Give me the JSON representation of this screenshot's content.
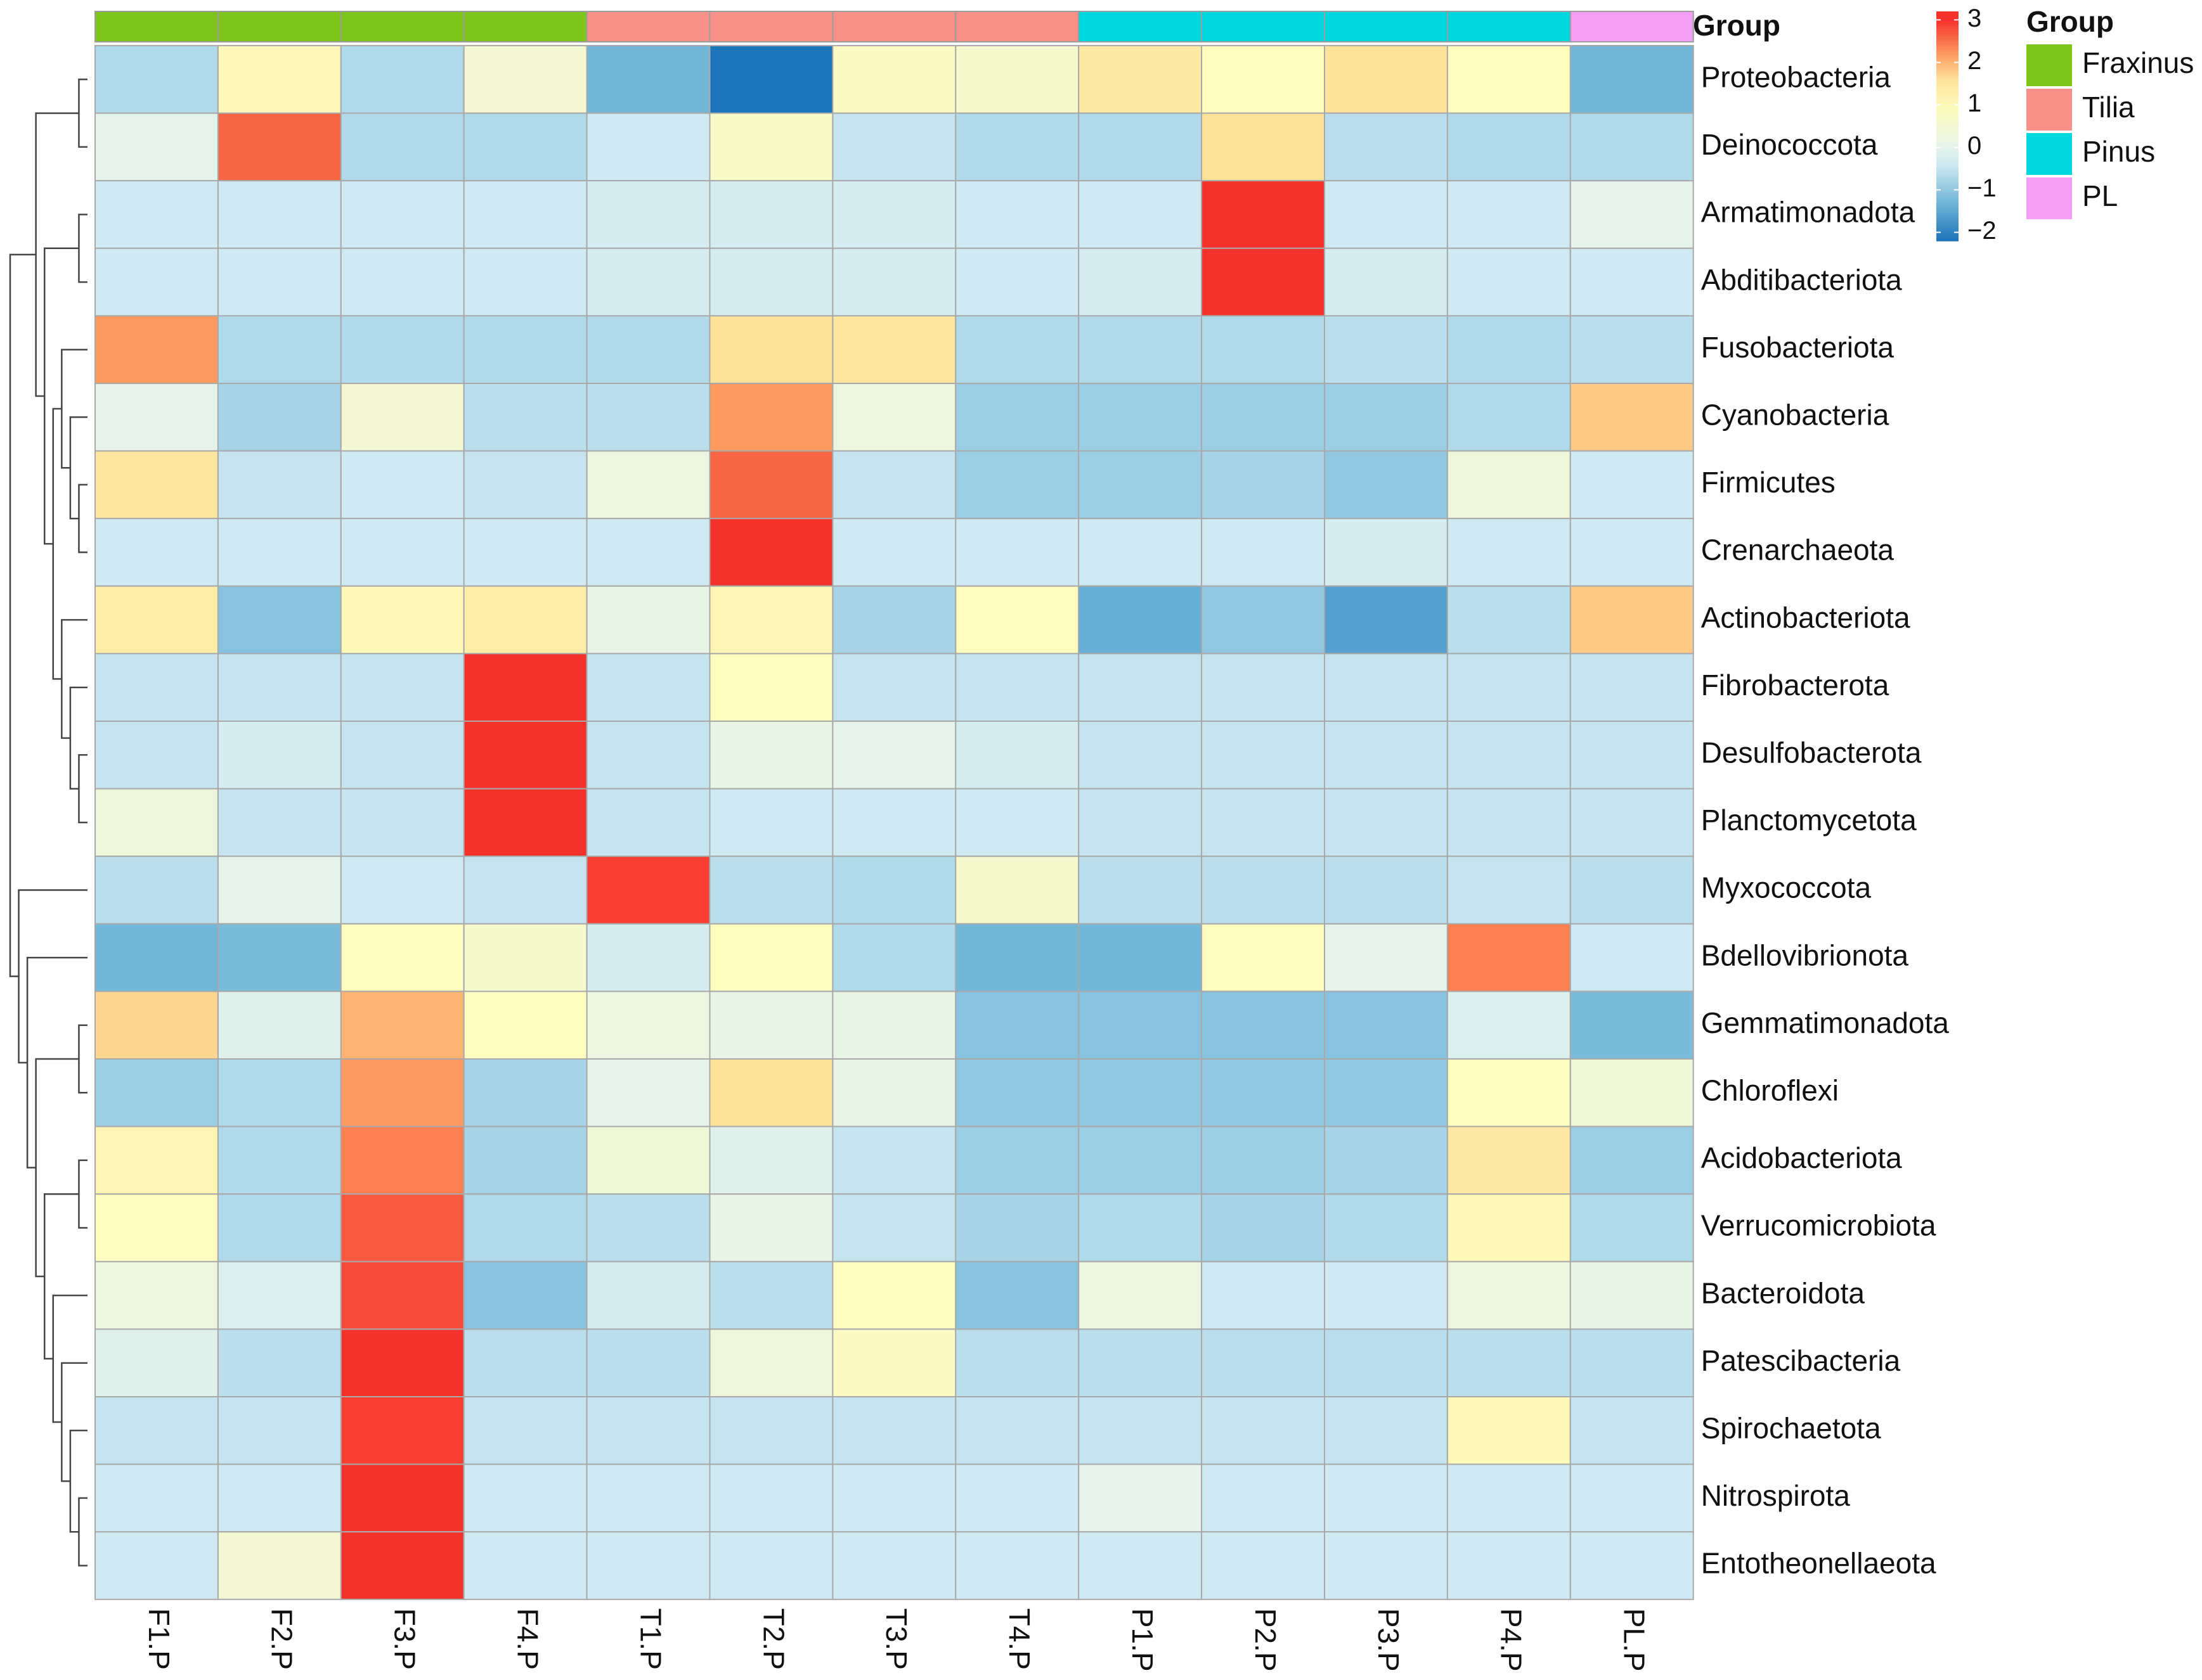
{
  "chart_data": {
    "type": "heatmap",
    "columns": [
      "F1.P",
      "F2.P",
      "F3.P",
      "F4.P",
      "T1.P",
      "T2.P",
      "T3.P",
      "T4.P",
      "P1.P",
      "P2.P",
      "P3.P",
      "P4.P",
      "PL.P"
    ],
    "column_groups": [
      "Fraxinus",
      "Fraxinus",
      "Fraxinus",
      "Fraxinus",
      "Tilia",
      "Tilia",
      "Tilia",
      "Tilia",
      "Pinus",
      "Pinus",
      "Pinus",
      "Pinus",
      "PL"
    ],
    "rows": [
      "Proteobacteria",
      "Deinococcota",
      "Armatimonadota",
      "Abditibacteriota",
      "Fusobacteriota",
      "Cyanobacteria",
      "Firmicutes",
      "Crenarchaeota",
      "Actinobacteriota",
      "Fibrobacterota",
      "Desulfobacterota",
      "Planctomycetota",
      "Myxococcota",
      "Bdellovibrionota",
      "Gemmatimonadota",
      "Chloroflexi",
      "Acidobacteriota",
      "Verrucomicrobiota",
      "Bacteroidota",
      "Patescibacteria",
      "Spirochaetota",
      "Nitrospirota",
      "Entotheonellaeota"
    ],
    "values": [
      [
        -0.7,
        1.0,
        -0.7,
        0.5,
        -1.3,
        -2.2,
        0.8,
        0.6,
        1.4,
        0.9,
        1.6,
        0.9,
        -1.3
      ],
      [
        0.0,
        2.6,
        -0.7,
        -0.7,
        -0.4,
        0.7,
        -0.5,
        -0.7,
        -0.7,
        1.6,
        -0.6,
        -0.7,
        -0.7
      ],
      [
        -0.4,
        -0.4,
        -0.4,
        -0.4,
        -0.3,
        -0.3,
        -0.3,
        -0.4,
        -0.4,
        3.0,
        -0.4,
        -0.4,
        0.0
      ],
      [
        -0.4,
        -0.4,
        -0.4,
        -0.4,
        -0.3,
        -0.3,
        -0.3,
        -0.4,
        -0.3,
        3.0,
        -0.3,
        -0.4,
        -0.4
      ],
      [
        2.2,
        -0.7,
        -0.7,
        -0.7,
        -0.7,
        1.6,
        1.5,
        -0.7,
        -0.7,
        -0.7,
        -0.6,
        -0.7,
        -0.6
      ],
      [
        0.0,
        -0.8,
        0.5,
        -0.6,
        -0.6,
        2.2,
        0.2,
        -0.9,
        -0.9,
        -0.9,
        -0.9,
        -0.7,
        1.8
      ],
      [
        1.5,
        -0.5,
        -0.4,
        -0.5,
        0.2,
        2.6,
        -0.5,
        -0.9,
        -0.9,
        -0.8,
        -1.0,
        0.3,
        -0.4
      ],
      [
        -0.4,
        -0.4,
        -0.4,
        -0.4,
        -0.4,
        3.0,
        -0.4,
        -0.4,
        -0.4,
        -0.4,
        -0.3,
        -0.4,
        -0.4
      ],
      [
        1.3,
        -1.1,
        1.0,
        1.3,
        0.1,
        1.1,
        -0.8,
        0.9,
        -1.4,
        -1.0,
        -1.6,
        -0.6,
        1.8
      ],
      [
        -0.5,
        -0.5,
        -0.5,
        3.0,
        -0.5,
        0.9,
        -0.5,
        -0.5,
        -0.5,
        -0.5,
        -0.5,
        -0.5,
        -0.5
      ],
      [
        -0.5,
        -0.3,
        -0.5,
        3.0,
        -0.5,
        0.1,
        0.0,
        -0.3,
        -0.5,
        -0.5,
        -0.5,
        -0.5,
        -0.5
      ],
      [
        0.3,
        -0.5,
        -0.5,
        3.0,
        -0.5,
        -0.4,
        -0.4,
        -0.4,
        -0.5,
        -0.5,
        -0.5,
        -0.5,
        -0.5
      ],
      [
        -0.6,
        0.0,
        -0.4,
        -0.5,
        2.9,
        -0.6,
        -0.7,
        0.6,
        -0.6,
        -0.6,
        -0.6,
        -0.5,
        -0.6
      ],
      [
        -1.3,
        -1.2,
        0.9,
        0.6,
        -0.3,
        0.9,
        -0.7,
        -1.3,
        -1.3,
        0.9,
        0.0,
        2.4,
        -0.4
      ],
      [
        1.7,
        -0.1,
        2.0,
        0.9,
        0.2,
        0.1,
        0.1,
        -1.1,
        -1.1,
        -1.1,
        -1.1,
        -0.2,
        -1.2
      ],
      [
        -0.9,
        -0.7,
        2.2,
        -0.8,
        0.0,
        1.6,
        0.1,
        -1.0,
        -1.0,
        -1.0,
        -1.0,
        0.9,
        0.4
      ],
      [
        1.1,
        -0.7,
        2.4,
        -0.8,
        0.4,
        -0.1,
        -0.5,
        -0.9,
        -0.9,
        -0.9,
        -0.8,
        1.4,
        -0.9
      ],
      [
        0.9,
        -0.7,
        2.7,
        -0.7,
        -0.6,
        0.1,
        -0.5,
        -0.8,
        -0.7,
        -0.8,
        -0.7,
        1.0,
        -0.7
      ],
      [
        0.2,
        -0.2,
        2.8,
        -1.1,
        -0.3,
        -0.6,
        0.9,
        -1.1,
        0.2,
        -0.4,
        -0.4,
        0.2,
        0.1
      ],
      [
        -0.1,
        -0.6,
        3.0,
        -0.6,
        -0.6,
        0.3,
        0.8,
        -0.6,
        -0.6,
        -0.6,
        -0.6,
        -0.6,
        -0.6
      ],
      [
        -0.5,
        -0.5,
        2.9,
        -0.5,
        -0.5,
        -0.5,
        -0.5,
        -0.5,
        -0.5,
        -0.5,
        -0.5,
        1.0,
        -0.5
      ],
      [
        -0.4,
        -0.4,
        3.0,
        -0.4,
        -0.4,
        -0.4,
        -0.4,
        -0.4,
        0.0,
        -0.4,
        -0.4,
        -0.4,
        -0.4
      ],
      [
        -0.4,
        0.5,
        3.0,
        -0.4,
        -0.4,
        -0.4,
        -0.4,
        -0.4,
        -0.4,
        -0.4,
        -0.4,
        -0.4,
        -0.4
      ]
    ],
    "color_scale": {
      "stops": [
        {
          "v": -2.2,
          "c": "#1c74b9"
        },
        {
          "v": -1.3,
          "c": "#72b6d8"
        },
        {
          "v": -0.4,
          "c": "#cfeaf2"
        },
        {
          "v": 0.0,
          "c": "#e5f3ea"
        },
        {
          "v": 0.9,
          "c": "#fefcbe"
        },
        {
          "v": 1.6,
          "c": "#fde29a"
        },
        {
          "v": 2.2,
          "c": "#fc9a5f"
        },
        {
          "v": 3.0,
          "c": "#f5312c"
        }
      ],
      "ticks": [
        3,
        2,
        1,
        0,
        -1,
        -2
      ],
      "range": [
        -2.2,
        3.2
      ]
    },
    "annotation_title": "Group",
    "legend": {
      "title": "Group",
      "items": [
        {
          "name": "Fraxinus",
          "color": "#7ec41b"
        },
        {
          "name": "Tilia",
          "color": "#f8908a"
        },
        {
          "name": "Pinus",
          "color": "#00d8df"
        },
        {
          "name": "PL",
          "color": "#f3a0f4"
        }
      ]
    },
    "row_dendrogram": [
      [
        [
          0,
          1
        ],
        [
          [
            2,
            3
          ],
          [
            [
              4,
              [
                5,
                [
                  6,
                  7
                ]
              ]
            ],
            [
              8,
              [
                9,
                [
                  10,
                  11
                ]
              ]
            ]
          ]
        ]
      ],
      [
        12,
        [
          13,
          [
            [
              14,
              15
            ],
            [
              [
                16,
                17
              ],
              [
                18,
                [
                  19,
                  [
                    20,
                    [
                      21,
                      22
                    ]
                  ]
                ]
              ]
            ]
          ]
        ]
      ]
    ]
  }
}
